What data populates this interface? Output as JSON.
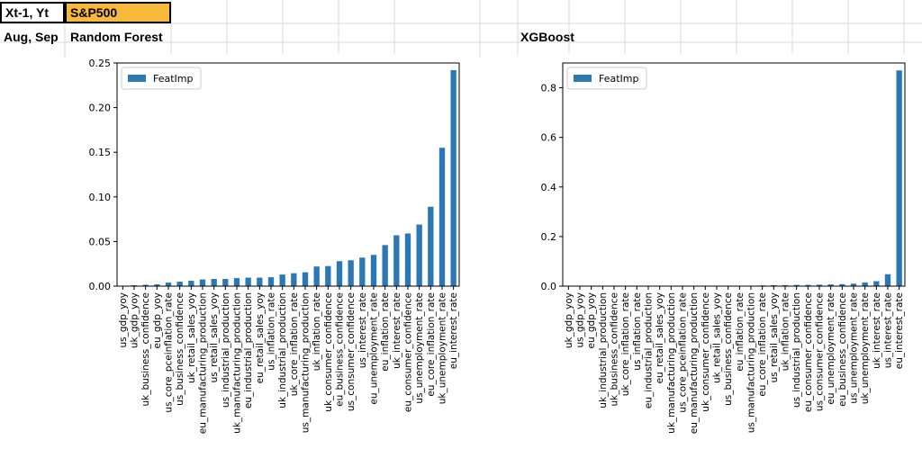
{
  "spreadsheet": {
    "cell_a1": "Xt-1, Yt",
    "cell_b1": "S&P500",
    "cell_a2": "Aug, Sep",
    "cell_b2": "Random Forest",
    "cell_f2": "XGBoost",
    "header_fill_color": "#f6b93b"
  },
  "chart_data": [
    {
      "type": "bar",
      "title": "Random Forest",
      "legend": [
        "FeatImp"
      ],
      "legend_position": "top-left",
      "bar_color": "#2a78b5",
      "ylim": [
        0,
        0.25
      ],
      "yticks": [
        0.0,
        0.05,
        0.1,
        0.15,
        0.2,
        0.25
      ],
      "ytick_labels": [
        "0.00",
        "0.05",
        "0.10",
        "0.15",
        "0.20",
        "0.25"
      ],
      "grid": false,
      "categories": [
        "us_gdp_yoy",
        "uk_gdp_yoy",
        "uk_business_confidence",
        "eu_gdp_yoy",
        "us_core_pceinflation_rate",
        "us_business_confidence",
        "uk_retail_sales_yoy",
        "eu_manufacturing_production",
        "us_retail_sales_yoy",
        "us_industrial_production",
        "uk_manufacturing_production",
        "eu_industrial_production",
        "eu_retail_sales_yoy",
        "us_inflation_rate",
        "uk_industrial_production",
        "uk_core_inflation_rate",
        "us_manufacturing_production",
        "uk_inflation_rate",
        "uk_consumer_confidence",
        "eu_business_confidence",
        "us_consumer_confidence",
        "us_interest_rate",
        "eu_unemployment_rate",
        "eu_inflation_rate",
        "uk_interest_rate",
        "eu_consumer_confidence",
        "us_unemployment_rate",
        "eu_core_inflation_rate",
        "uk_unemployment_rate",
        "eu_interest_rate"
      ],
      "values": [
        0.0005,
        0.001,
        0.0015,
        0.002,
        0.004,
        0.005,
        0.006,
        0.0075,
        0.008,
        0.008,
        0.009,
        0.0095,
        0.0095,
        0.01,
        0.013,
        0.0145,
        0.0155,
        0.022,
        0.0225,
        0.028,
        0.029,
        0.032,
        0.035,
        0.046,
        0.057,
        0.059,
        0.069,
        0.089,
        0.155,
        0.242
      ]
    },
    {
      "type": "bar",
      "title": "XGBoost",
      "legend": [
        "FeatImp"
      ],
      "legend_position": "top-left",
      "bar_color": "#2a78b5",
      "ylim": [
        0,
        0.9
      ],
      "yticks": [
        0.0,
        0.2,
        0.4,
        0.6,
        0.8
      ],
      "ytick_labels": [
        "0.0",
        "0.2",
        "0.4",
        "0.6",
        "0.8"
      ],
      "grid": false,
      "categories": [
        "uk_gdp_yoy",
        "us_gdp_yoy",
        "eu_gdp_yoy",
        "uk_industrial_production",
        "uk_business_confidence",
        "uk_core_inflation_rate",
        "us_inflation_rate",
        "eu_industrial_production",
        "eu_retail_sales_yoy",
        "uk_manufacturing_production",
        "us_core_pceinflation_rate",
        "eu_manufacturing_production",
        "uk_consumer_confidence",
        "uk_retail_sales_yoy",
        "us_business_confidence",
        "eu_inflation_rate",
        "us_manufacturing_production",
        "eu_core_inflation_rate",
        "us_retail_sales_yoy",
        "uk_inflation_rate",
        "us_industrial_production",
        "eu_consumer_confidence",
        "us_consumer_confidence",
        "eu_unemployment_rate",
        "eu_business_confidence",
        "us_unemployment_rate",
        "uk_unemployment_rate",
        "uk_interest_rate",
        "us_interest_rate",
        "eu_interest_rate"
      ],
      "values": [
        0,
        0,
        0,
        0,
        0,
        0,
        0,
        0,
        0,
        0,
        0,
        0,
        0,
        0,
        0,
        0,
        0,
        0.003,
        0.004,
        0.004,
        0.005,
        0.005,
        0.006,
        0.007,
        0.008,
        0.01,
        0.015,
        0.02,
        0.048,
        0.87
      ]
    }
  ]
}
